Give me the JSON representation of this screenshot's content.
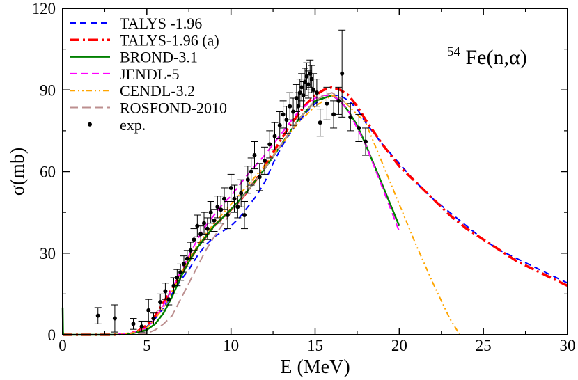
{
  "chart_data": {
    "type": "line",
    "title": "",
    "annotation": {
      "pre": "54",
      "main": "Fe(n,α)"
    },
    "xlabel": "E (MeV)",
    "ylabel": "σ(mb)",
    "xlim": [
      0,
      30
    ],
    "ylim": [
      0,
      120
    ],
    "xticks": [
      0,
      5,
      10,
      15,
      20,
      25,
      30
    ],
    "yticks": [
      0,
      30,
      60,
      90,
      120
    ],
    "grid": false,
    "legend_position": "top-left",
    "series": [
      {
        "name": "TALYS -1.96",
        "color": "#0000ff",
        "dash": "9,6",
        "width": 2,
        "x": [
          0,
          3,
          4,
          4.5,
          5,
          5.5,
          6,
          6.5,
          7,
          7.5,
          8,
          8.5,
          9,
          9.5,
          10,
          10.5,
          11,
          11.5,
          12,
          12.5,
          13,
          13.5,
          14,
          14.5,
          15,
          15.5,
          16,
          16.5,
          17,
          17.5,
          18,
          19,
          20,
          21,
          22,
          23,
          24,
          25,
          26,
          27,
          28,
          29,
          30
        ],
        "y": [
          0,
          0,
          0.4,
          1.2,
          3,
          6,
          10,
          15,
          20,
          24,
          29,
          33,
          36,
          38,
          40,
          43,
          47,
          51,
          56,
          63,
          69,
          74,
          78,
          82,
          85,
          87,
          88,
          88,
          86,
          83,
          78,
          70,
          63,
          56,
          50,
          45,
          40,
          35,
          31,
          28,
          25,
          22,
          19
        ]
      },
      {
        "name": "TALYS-1.96 (a)",
        "color": "#ff0000",
        "dash": "14,5,3,5",
        "width": 3.5,
        "x": [
          0,
          3,
          4,
          4.5,
          5,
          5.5,
          6,
          6.5,
          7,
          7.5,
          8,
          8.5,
          9,
          9.5,
          10,
          10.5,
          11,
          11.5,
          12,
          12.5,
          13,
          13.5,
          14,
          14.5,
          15,
          15.5,
          16,
          16.5,
          17,
          17.5,
          18,
          19,
          20,
          21,
          22,
          23,
          24,
          25,
          26,
          27,
          28,
          29,
          30
        ],
        "y": [
          0,
          0,
          0.4,
          1.5,
          3.5,
          7,
          12,
          17,
          22,
          27,
          32,
          36,
          40,
          43,
          46,
          49,
          53,
          57,
          62,
          67,
          72,
          77,
          81,
          85,
          88,
          90,
          91,
          90,
          88,
          84,
          79,
          70,
          62,
          56,
          50,
          44,
          39,
          35,
          31,
          27,
          24,
          21,
          18
        ]
      },
      {
        "name": "BROND-3.1",
        "color": "#008000",
        "dash": "",
        "width": 2.5,
        "x": [
          0,
          0.02,
          0.05,
          3,
          4,
          5,
          5.5,
          6,
          6.5,
          7,
          7.5,
          8,
          8.5,
          9,
          9.5,
          10,
          11,
          12,
          13,
          14,
          15,
          16,
          16.5,
          17,
          17.5,
          18,
          19,
          20
        ],
        "y": [
          10,
          1,
          0,
          0,
          0.3,
          1.8,
          4,
          8,
          14,
          21,
          27,
          32,
          36,
          40,
          43,
          46,
          53,
          61,
          70,
          79,
          86,
          88,
          86,
          82,
          77,
          70,
          55,
          40
        ]
      },
      {
        "name": "JENDL-5",
        "color": "#ff00ff",
        "dash": "10,6",
        "width": 2,
        "x": [
          0,
          3,
          4,
          5,
          5.5,
          6,
          6.5,
          7,
          7.5,
          8,
          8.5,
          9,
          9.5,
          10,
          11,
          12,
          13,
          14,
          15,
          15.5,
          16,
          16.5,
          17,
          17.5,
          18,
          19,
          20
        ],
        "y": [
          0,
          0,
          0.5,
          2.5,
          6,
          11,
          17,
          23,
          29,
          35,
          40,
          44,
          48,
          51,
          59,
          66,
          74,
          82,
          87,
          88,
          88,
          86,
          82,
          76,
          70,
          54,
          38
        ]
      },
      {
        "name": "CENDL-3.2",
        "color": "#ffa500",
        "dash": "8,4,2,4,2,4",
        "width": 2,
        "x": [
          0,
          3,
          4,
          5,
          5.5,
          6,
          6.5,
          7,
          7.5,
          8,
          9,
          10,
          11,
          12,
          13,
          14,
          15,
          16,
          16.5,
          17,
          18,
          19,
          20,
          21,
          22,
          23,
          23.6
        ],
        "y": [
          0,
          0,
          0.4,
          2.5,
          6,
          10,
          16,
          22,
          28,
          33,
          41,
          48,
          55,
          62,
          70,
          78,
          84,
          88,
          87,
          84,
          78,
          63,
          48,
          33,
          19,
          6,
          0
        ]
      },
      {
        "name": "ROSFOND-2010",
        "color": "#bc8f8f",
        "dash": "12,6",
        "width": 2,
        "x": [
          0,
          4,
          5,
          5.5,
          6,
          6.5,
          7,
          7.5,
          8,
          8.5,
          9,
          10,
          11,
          12,
          13,
          14,
          15,
          15.5,
          16,
          16.5,
          17
        ],
        "y": [
          0,
          0,
          0.5,
          1.8,
          4,
          7,
          13,
          19,
          25,
          31,
          36,
          45,
          53,
          61,
          70,
          79,
          86,
          88,
          89,
          87,
          84
        ]
      }
    ],
    "experimental": {
      "name": "exp.",
      "color": "#000000",
      "points": [
        [
          2.1,
          7,
          3
        ],
        [
          3.1,
          6,
          5
        ],
        [
          4.2,
          4,
          2
        ],
        [
          4.7,
          3,
          2
        ],
        [
          5.1,
          9,
          4
        ],
        [
          5.4,
          6,
          2
        ],
        [
          5.8,
          12,
          3
        ],
        [
          6.1,
          16,
          3
        ],
        [
          6.3,
          13,
          2
        ],
        [
          6.6,
          18,
          3
        ],
        [
          6.8,
          21,
          3
        ],
        [
          7.0,
          23,
          3
        ],
        [
          7.2,
          26,
          3
        ],
        [
          7.4,
          28,
          3
        ],
        [
          7.6,
          31,
          3
        ],
        [
          7.8,
          35,
          4
        ],
        [
          8.0,
          40,
          4
        ],
        [
          8.2,
          37,
          3
        ],
        [
          8.4,
          41,
          4
        ],
        [
          8.6,
          39,
          4
        ],
        [
          8.8,
          45,
          4
        ],
        [
          9.0,
          42,
          4
        ],
        [
          9.2,
          47,
          4
        ],
        [
          9.4,
          46,
          5
        ],
        [
          9.6,
          50,
          4
        ],
        [
          9.8,
          44,
          5
        ],
        [
          10.0,
          54,
          5
        ],
        [
          10.2,
          50,
          5
        ],
        [
          10.4,
          47,
          4
        ],
        [
          10.6,
          52,
          5
        ],
        [
          10.8,
          44,
          5
        ],
        [
          11.0,
          57,
          5
        ],
        [
          11.2,
          60,
          5
        ],
        [
          11.4,
          66,
          5
        ],
        [
          11.7,
          58,
          5
        ],
        [
          12.0,
          64,
          5
        ],
        [
          12.3,
          70,
          5
        ],
        [
          12.6,
          73,
          5
        ],
        [
          12.9,
          77,
          5
        ],
        [
          13.1,
          81,
          5
        ],
        [
          13.3,
          79,
          5
        ],
        [
          13.5,
          84,
          5
        ],
        [
          13.7,
          82,
          5
        ],
        [
          13.9,
          87,
          5
        ],
        [
          14.0,
          84,
          5
        ],
        [
          14.1,
          89,
          5
        ],
        [
          14.2,
          91,
          5
        ],
        [
          14.3,
          88,
          5
        ],
        [
          14.4,
          93,
          5
        ],
        [
          14.5,
          95,
          5
        ],
        [
          14.6,
          92,
          5
        ],
        [
          14.7,
          96,
          5
        ],
        [
          14.8,
          94,
          5
        ],
        [
          14.9,
          90,
          6
        ],
        [
          15.1,
          89,
          5
        ],
        [
          15.3,
          78,
          5
        ],
        [
          15.7,
          85,
          6
        ],
        [
          16.1,
          81,
          5
        ],
        [
          16.4,
          86,
          5
        ],
        [
          16.6,
          96,
          16
        ],
        [
          17.1,
          80,
          5
        ],
        [
          17.6,
          76,
          5
        ],
        [
          18.0,
          71,
          5
        ]
      ]
    }
  }
}
